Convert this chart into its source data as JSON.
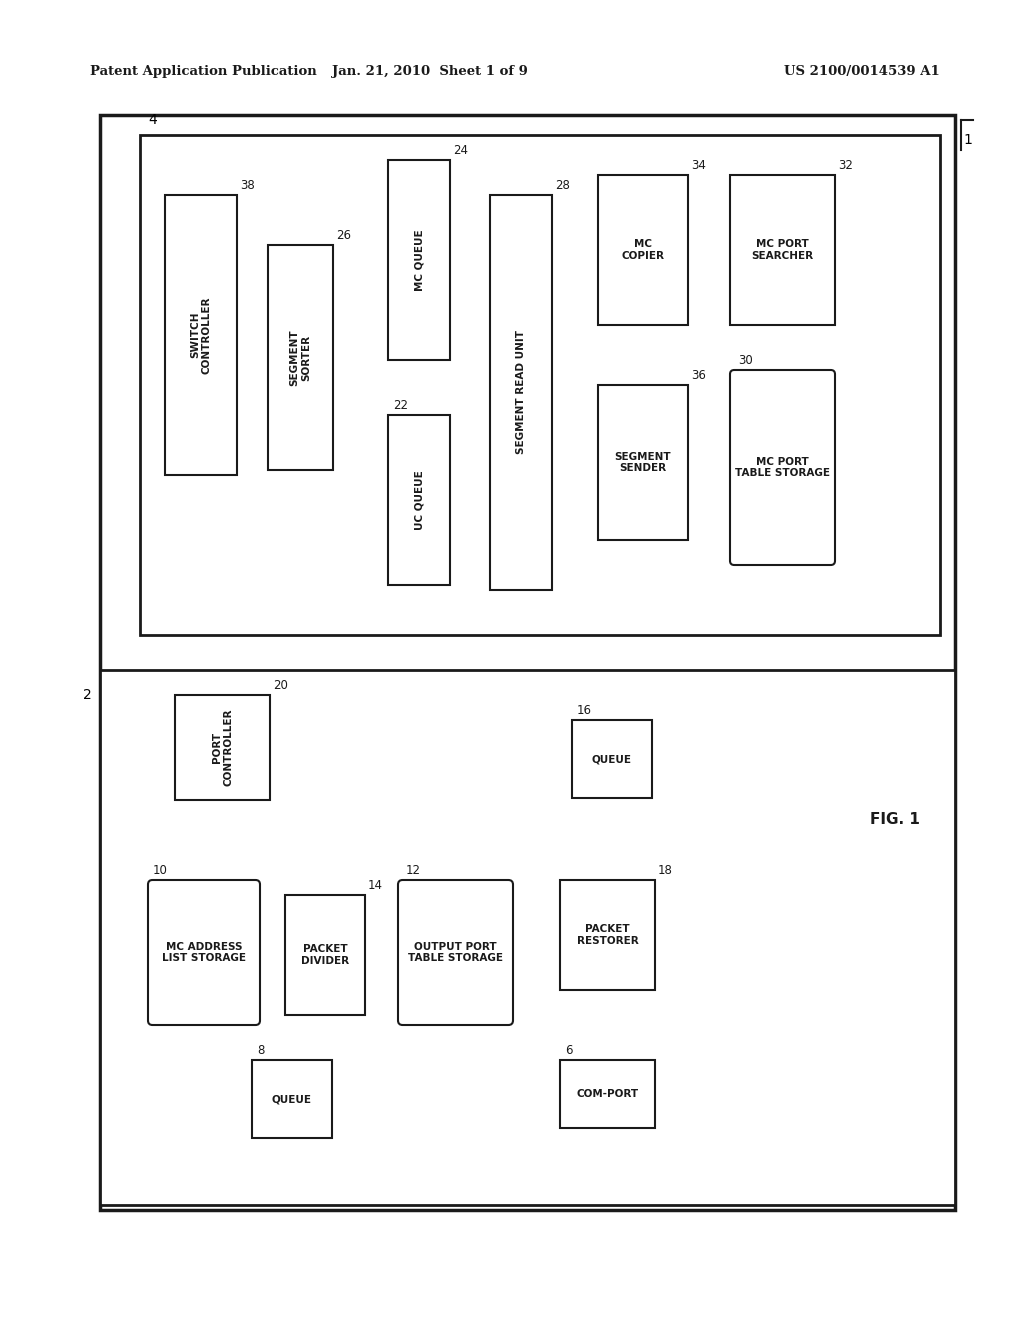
{
  "bg_color": "#ffffff",
  "line_color": "#1a1a1a",
  "header_left": "Patent Application Publication",
  "header_mid": "Jan. 21, 2010  Sheet 1 of 9",
  "header_right": "US 2100/0014539 A1",
  "fig_label": "FIG. 1"
}
